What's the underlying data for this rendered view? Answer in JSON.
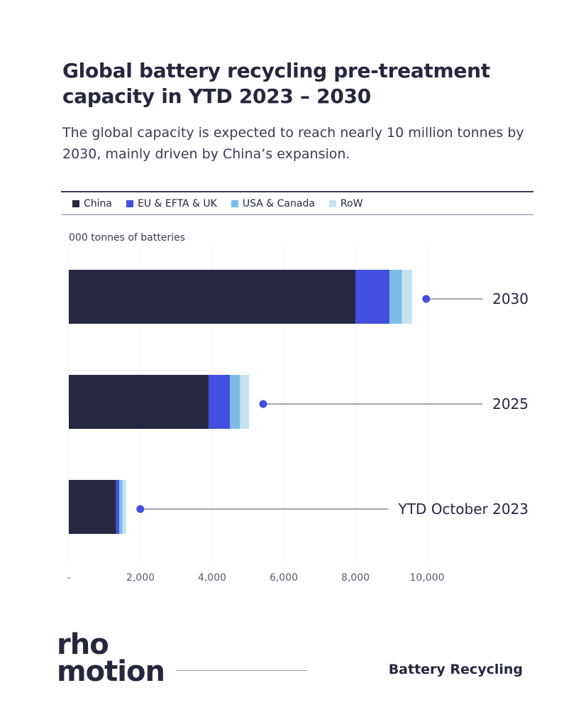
{
  "title": "Global battery recycling pre-treatment capacity in YTD 2023 – 2030",
  "subtitle": "The global capacity is expected to reach nearly 10 million tonnes by 2030, mainly driven by China’s expansion.",
  "legend": [
    {
      "name": "China",
      "color": "#262842"
    },
    {
      "name": "EU & EFTA & UK",
      "color": "#434fdf"
    },
    {
      "name": "USA & Canada",
      "color": "#7cbde8"
    },
    {
      "name": "RoW",
      "color": "#c5e3ef"
    }
  ],
  "unit_label": "000 tonnes of batteries",
  "chart_data": {
    "type": "bar",
    "orientation": "horizontal",
    "stacked": true,
    "title": "Global battery recycling pre-treatment capacity in YTD 2023 – 2030",
    "xlabel": "000 tonnes of batteries",
    "ylabel": "",
    "xlim": [
      0,
      10000
    ],
    "x_ticks": [
      "-",
      "2,000",
      "4,000",
      "6,000",
      "8,000",
      "10,000"
    ],
    "x_tick_values": [
      0,
      2000,
      4000,
      6000,
      8000,
      10000
    ],
    "grid": "vertical-dotted",
    "categories": [
      "2030",
      "2025",
      "YTD October 2023"
    ],
    "series": [
      {
        "name": "China",
        "color": "#262842",
        "values": [
          8000,
          3900,
          1320
        ]
      },
      {
        "name": "EU & EFTA & UK",
        "color": "#434fdf",
        "values": [
          950,
          600,
          90
        ]
      },
      {
        "name": "USA & Canada",
        "color": "#7cbde8",
        "values": [
          350,
          280,
          90
        ]
      },
      {
        "name": "RoW",
        "color": "#c5e3ef",
        "values": [
          280,
          250,
          100
        ]
      }
    ],
    "totals": [
      9580,
      5030,
      1600
    ],
    "marker_color": "#434fdf"
  },
  "footer": {
    "brand_line1": "rho",
    "brand_line2": "motion",
    "label": "Battery Recycling"
  }
}
